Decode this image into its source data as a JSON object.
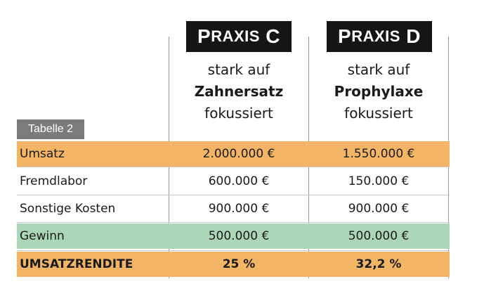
{
  "columns": [
    {
      "title_first": "P",
      "title_rest": "RAXIS",
      "title_letter": "C",
      "desc_line1": "stark auf",
      "desc_line2": "Zahnersatz",
      "desc_line3": "fokussiert"
    },
    {
      "title_first": "P",
      "title_rest": "RAXIS",
      "title_letter": "D",
      "desc_line1": "stark auf",
      "desc_line2": "Prophylaxe",
      "desc_line3": "fokussiert"
    }
  ],
  "table_label": "Tabelle 2",
  "rows": [
    {
      "label": "Umsatz",
      "c": "2.000.000 €",
      "d": "1.550.000 €"
    },
    {
      "label": "Fremdlabor",
      "c": "600.000 €",
      "d": "150.000 €"
    },
    {
      "label": "Sonstige Kosten",
      "c": "900.000 €",
      "d": "900.000 €"
    },
    {
      "label": "Gewinn",
      "c": "500.000 €",
      "d": "500.000 €"
    },
    {
      "label": "UMSATZRENDITE",
      "c": "25 %",
      "d": "32,2 %"
    }
  ],
  "colors": {
    "orange": "#f2b565",
    "green": "#acd6b8",
    "header_bg": "#151515",
    "tab_bg": "#7b7b7b"
  }
}
